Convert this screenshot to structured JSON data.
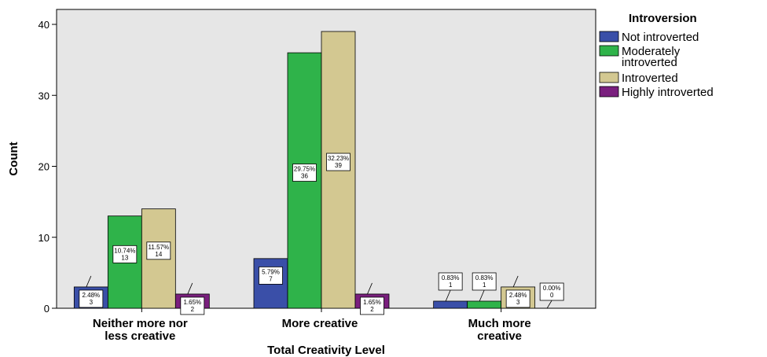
{
  "chart_data": {
    "type": "bar",
    "title": "",
    "xlabel": "Total Creativity Level",
    "ylabel": "Count",
    "ylim": [
      0,
      40
    ],
    "yticks": [
      0,
      10,
      20,
      30,
      40
    ],
    "grid": false,
    "legend_title": "Introversion",
    "legend_position": "right",
    "categories": [
      [
        "Neither more nor",
        "less creative"
      ],
      [
        "More creative"
      ],
      [
        "Much more",
        "creative"
      ]
    ],
    "series": [
      {
        "name": "Not introverted",
        "color": "#3a4fa8",
        "values": [
          3,
          7,
          1
        ],
        "labels": [
          "2.48%",
          "5.79%",
          "0.83%"
        ]
      },
      {
        "name": [
          "Moderately",
          "introverted"
        ],
        "color": "#2fb34a",
        "values": [
          13,
          36,
          1
        ],
        "labels": [
          "10.74%",
          "29.75%",
          "0.83%"
        ]
      },
      {
        "name": "Introverted",
        "color": "#d3c891",
        "values": [
          14,
          39,
          3
        ],
        "labels": [
          "11.57%",
          "32.23%",
          "2.48%"
        ]
      },
      {
        "name": "Highly introverted",
        "color": "#7a1f7e",
        "values": [
          2,
          2,
          0
        ],
        "labels": [
          "1.65%",
          "1.65%",
          "0.00%"
        ]
      }
    ]
  }
}
